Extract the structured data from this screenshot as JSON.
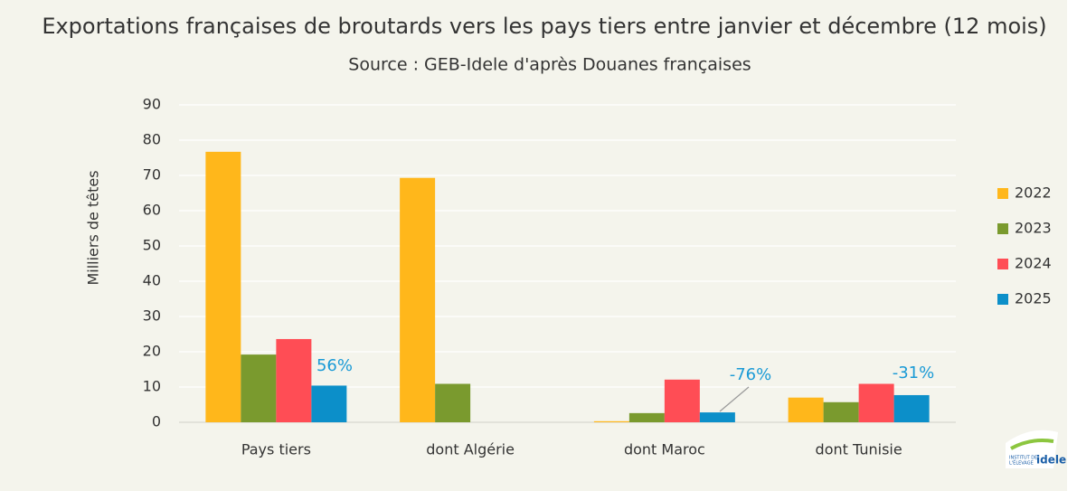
{
  "chart_data": {
    "type": "bar",
    "title": "Exportations françaises de broutards vers les pays tiers entre janvier et décembre (12 mois)",
    "subtitle": "Source : GEB-Idele d'après Douanes françaises",
    "y_label": "Milliers de têtes",
    "categories": [
      "Pays tiers",
      "dont Algérie",
      "dont Maroc",
      "dont Tunisie"
    ],
    "series": [
      {
        "name": "2022",
        "color": "#ffb71b",
        "values": [
          76.7,
          69.3,
          0.3,
          7.0
        ]
      },
      {
        "name": "2023",
        "color": "#7a9a2e",
        "values": [
          19.2,
          10.9,
          2.6,
          5.7
        ]
      },
      {
        "name": "2024",
        "color": "#ff4d55",
        "values": [
          23.6,
          null,
          12.1,
          10.9
        ]
      },
      {
        "name": "2025",
        "color": "#0c8fc9",
        "values": [
          10.4,
          null,
          2.8,
          7.7
        ]
      }
    ],
    "annotations": [
      "56%",
      "-76%",
      "-31%"
    ],
    "ylim": [
      0,
      90
    ],
    "yticks": [
      0,
      10,
      20,
      30,
      40,
      50,
      60,
      70,
      80,
      90
    ],
    "grid": true,
    "legend": "right",
    "logo": {
      "line1": "INSTITUT DE",
      "line2": "L'ÉLEVAGE",
      "brand": "idele"
    }
  }
}
